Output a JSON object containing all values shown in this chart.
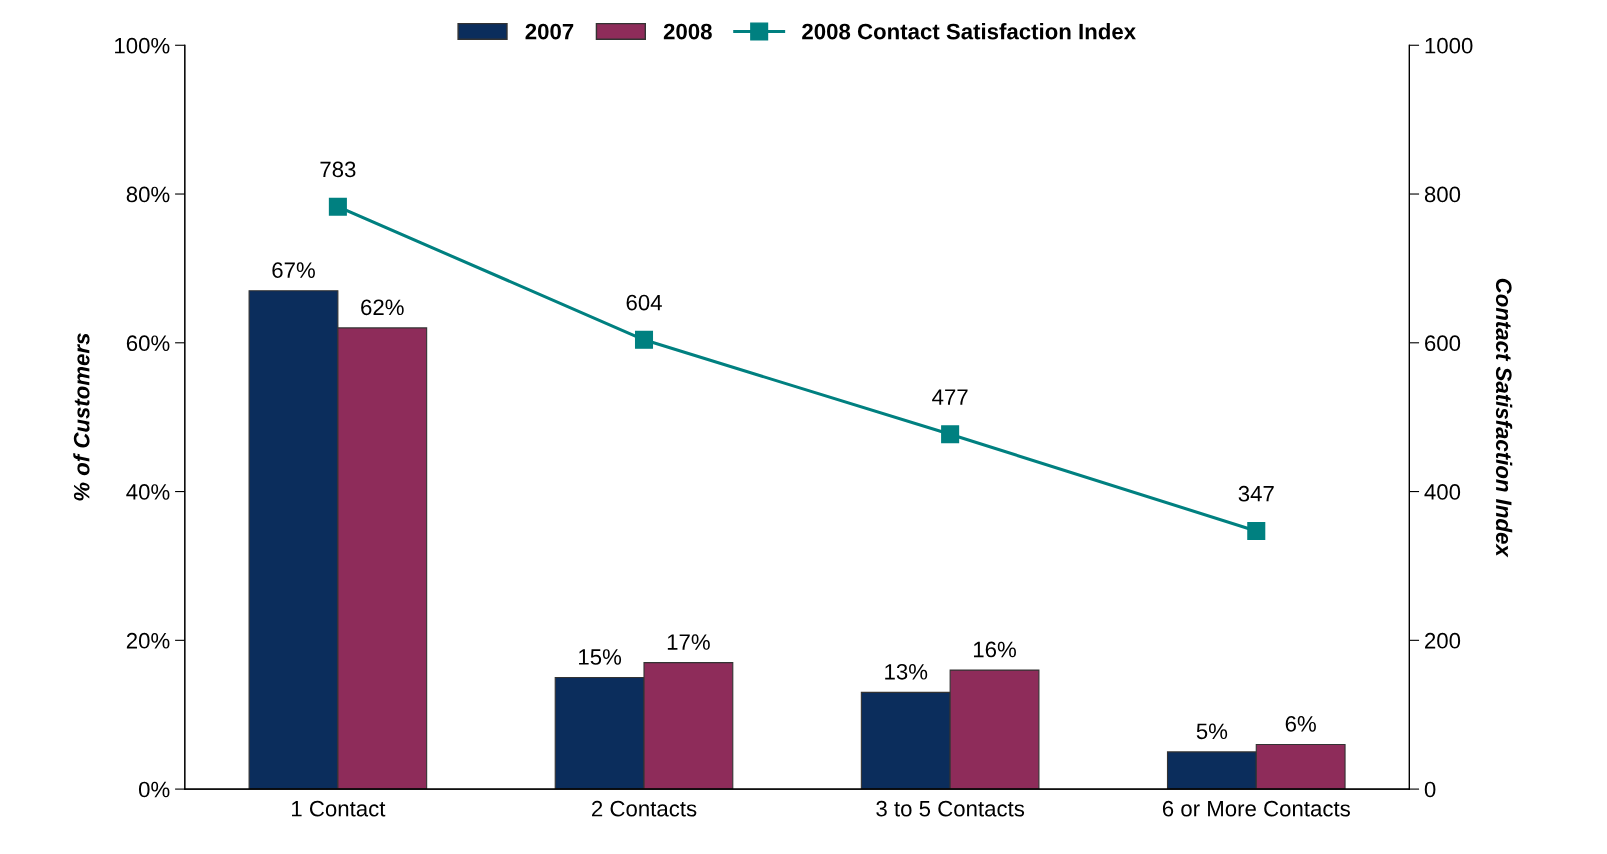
{
  "chart_data": {
    "type": "bar",
    "categories": [
      "1 Contact",
      "2 Contacts",
      "3 to 5 Contacts",
      "6 or More Contacts"
    ],
    "ylabel": "% of Customers",
    "y2label": "Contact Satisfaction Index",
    "ylim": [
      0,
      100
    ],
    "yticks": [
      {
        "value": 0,
        "label": "0%"
      },
      {
        "value": 20,
        "label": "20%"
      },
      {
        "value": 40,
        "label": "40%"
      },
      {
        "value": 60,
        "label": "60%"
      },
      {
        "value": 80,
        "label": "80%"
      },
      {
        "value": 100,
        "label": "100%"
      }
    ],
    "y2lim": [
      0,
      1000
    ],
    "y2ticks": [
      0,
      200,
      400,
      600,
      800,
      1000
    ],
    "series": [
      {
        "name": "2007",
        "color": "#0b2d5c",
        "values": [
          67,
          15,
          13,
          5
        ],
        "value_labels": [
          "67%",
          "15%",
          "13%",
          "5%"
        ]
      },
      {
        "name": "2008",
        "color": "#8e2c5a",
        "values": [
          62,
          17,
          16,
          6
        ],
        "value_labels": [
          "62%",
          "17%",
          "16%",
          "6%"
        ]
      },
      {
        "name": "2008 Contact Satisfaction Index",
        "type": "line",
        "axis": "y2",
        "color": "#008080",
        "marker": "square",
        "values": [
          783,
          604,
          477,
          347
        ],
        "value_labels": [
          "783",
          "604",
          "477",
          "347"
        ]
      }
    ],
    "legend": "top",
    "grid": false
  }
}
